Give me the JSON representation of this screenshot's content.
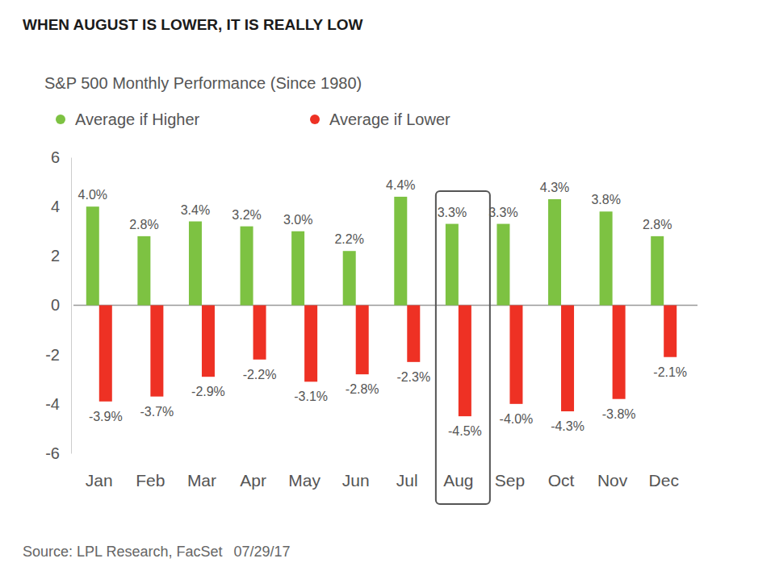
{
  "chart_data": {
    "type": "bar",
    "title": "WHEN AUGUST IS LOWER, IT IS REALLY LOW",
    "subtitle": "S&P 500 Monthly Performance (Since 1980)",
    "source": "Source: LPL Research, FacSet",
    "source_date": "07/29/17",
    "categories": [
      "Jan",
      "Feb",
      "Mar",
      "Apr",
      "May",
      "Jun",
      "Jul",
      "Aug",
      "Sep",
      "Oct",
      "Nov",
      "Dec"
    ],
    "series": [
      {
        "name": "Average if Higher",
        "color": "#7dc242",
        "values": [
          4.0,
          2.8,
          3.4,
          3.2,
          3.0,
          2.2,
          4.4,
          3.3,
          3.3,
          4.3,
          3.8,
          2.8
        ],
        "value_labels": [
          "4.0%",
          "2.8%",
          "3.4%",
          "3.2%",
          "3.0%",
          "2.2%",
          "4.4%",
          "3.3%",
          "3.3%",
          "4.3%",
          "3.8%",
          "2.8%"
        ]
      },
      {
        "name": "Average if Lower",
        "color": "#ee3124",
        "values": [
          -3.9,
          -3.7,
          -2.9,
          -2.2,
          -3.1,
          -2.8,
          -2.3,
          -4.5,
          -4.0,
          -4.3,
          -3.8,
          -2.1
        ],
        "value_labels": [
          "-3.9%",
          "-3.7%",
          "-2.9%",
          "-2.2%",
          "-3.1%",
          "-2.8%",
          "-2.3%",
          "-4.5%",
          "-4.0%",
          "-4.3%",
          "-3.8%",
          "-2.1%"
        ]
      }
    ],
    "ylim": [
      -6,
      6
    ],
    "yticks": [
      -6,
      -4,
      -2,
      0,
      2,
      4,
      6
    ],
    "legend": "top",
    "data_labels": true
  }
}
